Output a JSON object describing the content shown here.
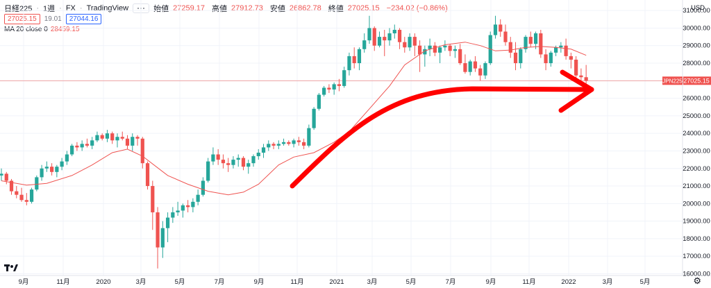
{
  "header": {
    "symbol": "日経225",
    "interval": "1週",
    "market": "FX",
    "source": "TradingView",
    "open_label": "始値",
    "open": "27259.17",
    "high_label": "高値",
    "high": "27912.73",
    "low_label": "安値",
    "low": "26862.78",
    "close_label": "終値",
    "close": "27025.15",
    "change": "−234.02 (−0.86%)"
  },
  "quote": {
    "bid": "27025.15",
    "spread": "19.01",
    "ask": "27044.16"
  },
  "indicator": {
    "label": "MA 20 close 0",
    "value": "28459.15"
  },
  "currency": "USD",
  "price_tag": {
    "symbol": "JPN225",
    "value": "27025.15"
  },
  "colors": {
    "up": "#26a69a",
    "down": "#ef5350",
    "ma": "#ef5350",
    "annotation": "#ff0000",
    "price_line": "#f0a3a3"
  },
  "chart_data": {
    "type": "candlestick",
    "y_ticks": [
      16000,
      17000,
      18000,
      19000,
      20000,
      21000,
      22000,
      23000,
      24000,
      25000,
      26000,
      27000,
      28000,
      29000,
      30000,
      31000
    ],
    "ylim": [
      15900,
      31600
    ],
    "x_ticks": [
      "9月",
      "11月",
      "2020",
      "3月",
      "5月",
      "7月",
      "9月",
      "11月",
      "2021",
      "3月",
      "5月",
      "7月",
      "9月",
      "11月",
      "2022",
      "3月",
      "5月"
    ],
    "ohlc": [
      [
        21600,
        22000,
        21300,
        21700
      ],
      [
        21700,
        21800,
        21100,
        21300
      ],
      [
        21300,
        21400,
        20500,
        20700
      ],
      [
        20700,
        21000,
        20300,
        20500
      ],
      [
        20500,
        20900,
        20100,
        20200
      ],
      [
        20200,
        20600,
        19900,
        20100
      ],
      [
        20100,
        20900,
        20000,
        20800
      ],
      [
        20800,
        21600,
        20700,
        21500
      ],
      [
        21500,
        22200,
        21300,
        22000
      ],
      [
        22000,
        22400,
        21800,
        22100
      ],
      [
        22100,
        22300,
        21600,
        21800
      ],
      [
        21800,
        22200,
        21500,
        22100
      ],
      [
        22100,
        22600,
        21900,
        22400
      ],
      [
        22400,
        23000,
        22200,
        22800
      ],
      [
        22800,
        23400,
        22700,
        23300
      ],
      [
        23300,
        23500,
        23000,
        23200
      ],
      [
        23200,
        23600,
        23000,
        23400
      ],
      [
        23400,
        23700,
        23200,
        23300
      ],
      [
        23300,
        23800,
        23100,
        23600
      ],
      [
        23600,
        24100,
        23500,
        23900
      ],
      [
        23900,
        24000,
        23600,
        23700
      ],
      [
        23700,
        24200,
        23500,
        24000
      ],
      [
        24000,
        24100,
        23400,
        23600
      ],
      [
        23600,
        24000,
        23200,
        23800
      ],
      [
        23800,
        24100,
        23600,
        23700
      ],
      [
        23700,
        23900,
        23100,
        23300
      ],
      [
        23300,
        24000,
        23000,
        23800
      ],
      [
        23800,
        23900,
        23300,
        23700
      ],
      [
        23700,
        23800,
        22000,
        22300
      ],
      [
        22300,
        22400,
        20800,
        21000
      ],
      [
        21000,
        21300,
        18500,
        19500
      ],
      [
        19500,
        19800,
        16300,
        17500
      ],
      [
        17500,
        19000,
        16900,
        18600
      ],
      [
        18600,
        19500,
        17800,
        19200
      ],
      [
        19200,
        19800,
        18900,
        19500
      ],
      [
        19500,
        20100,
        19300,
        19600
      ],
      [
        19600,
        20000,
        19200,
        19900
      ],
      [
        19900,
        20200,
        19500,
        19800
      ],
      [
        19800,
        20300,
        19500,
        20100
      ],
      [
        20100,
        20800,
        19900,
        20500
      ],
      [
        20500,
        21500,
        20400,
        21300
      ],
      [
        21300,
        22600,
        21200,
        22400
      ],
      [
        22400,
        23200,
        22200,
        22800
      ],
      [
        22800,
        23100,
        22200,
        22500
      ],
      [
        22500,
        22800,
        22000,
        22300
      ],
      [
        22300,
        22600,
        21800,
        22200
      ],
      [
        22200,
        22700,
        22000,
        22500
      ],
      [
        22500,
        22800,
        22100,
        22600
      ],
      [
        22600,
        22700,
        21900,
        22100
      ],
      [
        22100,
        22500,
        21700,
        22300
      ],
      [
        22300,
        22800,
        22100,
        22700
      ],
      [
        22700,
        23100,
        22500,
        22900
      ],
      [
        22900,
        23400,
        22600,
        23200
      ],
      [
        23200,
        23600,
        23000,
        23400
      ],
      [
        23400,
        23500,
        23100,
        23300
      ],
      [
        23300,
        23600,
        23100,
        23400
      ],
      [
        23400,
        23700,
        23300,
        23500
      ],
      [
        23500,
        23600,
        23300,
        23400
      ],
      [
        23400,
        23700,
        23200,
        23600
      ],
      [
        23600,
        23800,
        23300,
        23500
      ],
      [
        23500,
        23700,
        23100,
        23300
      ],
      [
        23300,
        24500,
        23200,
        24300
      ],
      [
        24300,
        25500,
        24200,
        25400
      ],
      [
        25400,
        26300,
        25300,
        26200
      ],
      [
        26200,
        26700,
        26100,
        26600
      ],
      [
        26600,
        26800,
        26300,
        26500
      ],
      [
        26500,
        26900,
        26200,
        26800
      ],
      [
        26800,
        27100,
        26400,
        26700
      ],
      [
        26700,
        27800,
        26600,
        27600
      ],
      [
        27600,
        28600,
        27300,
        28400
      ],
      [
        28400,
        28900,
        27700,
        28000
      ],
      [
        28000,
        28900,
        27600,
        28800
      ],
      [
        28800,
        29700,
        28600,
        29300
      ],
      [
        29300,
        30700,
        29100,
        30000
      ],
      [
        30000,
        30100,
        28700,
        29000
      ],
      [
        29000,
        29800,
        28900,
        29500
      ],
      [
        29500,
        29900,
        28400,
        29300
      ],
      [
        29300,
        30000,
        29000,
        29700
      ],
      [
        29700,
        30200,
        29400,
        29900
      ],
      [
        29900,
        30000,
        28800,
        29200
      ],
      [
        29200,
        29500,
        28600,
        28900
      ],
      [
        28900,
        29700,
        28700,
        29500
      ],
      [
        29500,
        29700,
        28400,
        29000
      ],
      [
        29000,
        29300,
        27500,
        28500
      ],
      [
        28500,
        29000,
        27800,
        28800
      ],
      [
        28800,
        29400,
        28400,
        29000
      ],
      [
        29000,
        29200,
        28400,
        28600
      ],
      [
        28600,
        29000,
        28000,
        28900
      ],
      [
        28900,
        29300,
        28700,
        29000
      ],
      [
        29000,
        29100,
        28400,
        28700
      ],
      [
        28700,
        29000,
        28300,
        28800
      ],
      [
        28800,
        29100,
        27900,
        28000
      ],
      [
        28000,
        28500,
        27400,
        27500
      ],
      [
        27500,
        28200,
        27300,
        28100
      ],
      [
        28100,
        28400,
        27500,
        27700
      ],
      [
        27700,
        27900,
        27000,
        27300
      ],
      [
        27300,
        28100,
        27100,
        28000
      ],
      [
        28000,
        29800,
        27900,
        29600
      ],
      [
        29600,
        30700,
        29400,
        30200
      ],
      [
        30200,
        30500,
        29500,
        29800
      ],
      [
        29800,
        30200,
        29000,
        29200
      ],
      [
        29200,
        29500,
        28300,
        28600
      ],
      [
        28600,
        29200,
        27600,
        28000
      ],
      [
        28000,
        28900,
        27700,
        28800
      ],
      [
        28800,
        29600,
        28600,
        29500
      ],
      [
        29500,
        29800,
        28900,
        29100
      ],
      [
        29100,
        29800,
        28800,
        29700
      ],
      [
        29700,
        29900,
        28300,
        28500
      ],
      [
        28500,
        28800,
        27600,
        28000
      ],
      [
        28000,
        28700,
        27800,
        28600
      ],
      [
        28600,
        29000,
        28400,
        28900
      ],
      [
        28900,
        29200,
        28600,
        29000
      ],
      [
        29000,
        29400,
        28200,
        28400
      ],
      [
        28400,
        28600,
        27700,
        28200
      ],
      [
        28200,
        28400,
        27000,
        27300
      ],
      [
        27300,
        27700,
        26900,
        27200
      ],
      [
        27200,
        27900,
        26800,
        27000
      ]
    ],
    "ma": [
      [
        0,
        21300
      ],
      [
        5,
        21050
      ],
      [
        9,
        21150
      ],
      [
        14,
        21600
      ],
      [
        18,
        22200
      ],
      [
        22,
        22900
      ],
      [
        25,
        23100
      ],
      [
        28,
        22700
      ],
      [
        33,
        21600
      ],
      [
        37,
        21100
      ],
      [
        41,
        20700
      ],
      [
        45,
        20500
      ],
      [
        48,
        20650
      ],
      [
        51,
        21100
      ],
      [
        55,
        22200
      ],
      [
        58,
        22650
      ],
      [
        62,
        22900
      ],
      [
        66,
        23500
      ],
      [
        69,
        24100
      ],
      [
        73,
        25400
      ],
      [
        77,
        26700
      ],
      [
        80,
        27900
      ],
      [
        84,
        28700
      ],
      [
        88,
        29050
      ],
      [
        92,
        29200
      ],
      [
        95,
        29000
      ],
      [
        98,
        28700
      ],
      [
        101,
        28750
      ],
      [
        104,
        28900
      ],
      [
        107,
        28950
      ],
      [
        110,
        28900
      ],
      [
        113,
        28800
      ],
      [
        116,
        28450
      ]
    ],
    "annotation": "hand-drawn-curved-arrow"
  }
}
